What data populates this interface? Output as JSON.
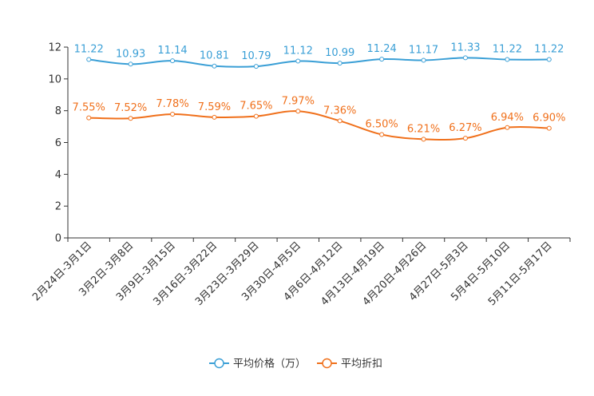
{
  "chart_data": {
    "type": "line",
    "categories": [
      "2月24日-3月1日",
      "3月2日-3月8日",
      "3月9日-3月15日",
      "3月16日-3月22日",
      "3月23日-3月29日",
      "3月30日-4月5日",
      "4月6日-4月12日",
      "4月13日-4月19日",
      "4月20日-4月26日",
      "4月27日-5月3日",
      "5月4日-5月10日",
      "5月11日-5月17日"
    ],
    "ylim": [
      0,
      12
    ],
    "yticks": [
      0,
      2,
      4,
      6,
      8,
      10,
      12
    ],
    "series": [
      {
        "name": "平均价格（万）",
        "color": "#3a9fd6",
        "values": [
          11.22,
          10.93,
          11.14,
          10.81,
          10.79,
          11.12,
          10.99,
          11.24,
          11.17,
          11.33,
          11.22,
          11.22
        ],
        "labels": [
          "11.22",
          "10.93",
          "11.14",
          "10.81",
          "10.79",
          "11.12",
          "10.99",
          "11.24",
          "11.17",
          "11.33",
          "11.22",
          "11.22"
        ]
      },
      {
        "name": "平均折扣",
        "color": "#f0701b",
        "values": [
          7.55,
          7.52,
          7.78,
          7.59,
          7.65,
          7.97,
          7.36,
          6.5,
          6.21,
          6.27,
          6.94,
          6.9
        ],
        "labels": [
          "7.55%",
          "7.52%",
          "7.78%",
          "7.59%",
          "7.65%",
          "7.97%",
          "7.36%",
          "6.50%",
          "6.21%",
          "6.27%",
          "6.94%",
          "6.90%"
        ]
      }
    ],
    "legend_position": "bottom-center"
  }
}
